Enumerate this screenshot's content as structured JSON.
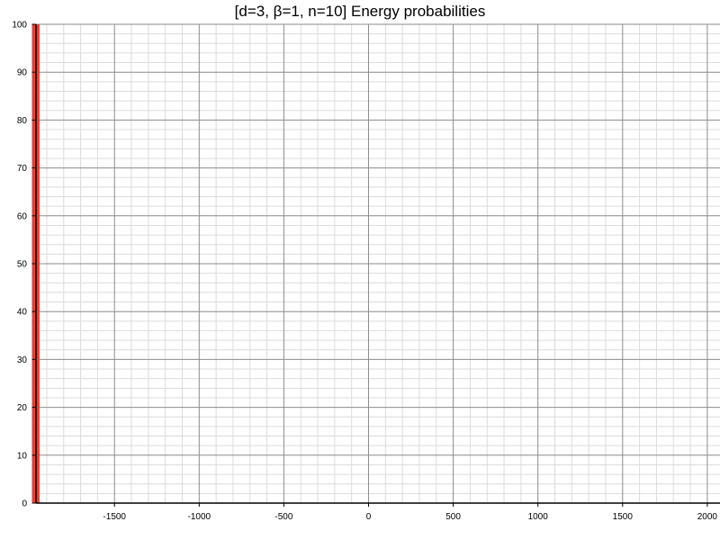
{
  "chart_data": {
    "type": "bar",
    "title": "[d=3, β=1, n=10] Energy probabilities",
    "xlabel": "",
    "ylabel": "",
    "xlim": [
      -1990,
      2075
    ],
    "ylim": [
      0,
      100
    ],
    "x_ticks": [
      -1500,
      -1000,
      -500,
      0,
      500,
      1000,
      1500,
      2000
    ],
    "y_ticks": [
      0,
      10,
      20,
      30,
      40,
      50,
      60,
      70,
      80,
      90,
      100
    ],
    "grid": true,
    "bars": [
      {
        "x": -1965,
        "value": 100
      }
    ],
    "bar_width": 45,
    "colors": {
      "bar": "#e8412e",
      "major_grid": "#8c8c8c",
      "minor_grid": "#dcdcdc",
      "axis": "#000000"
    }
  }
}
